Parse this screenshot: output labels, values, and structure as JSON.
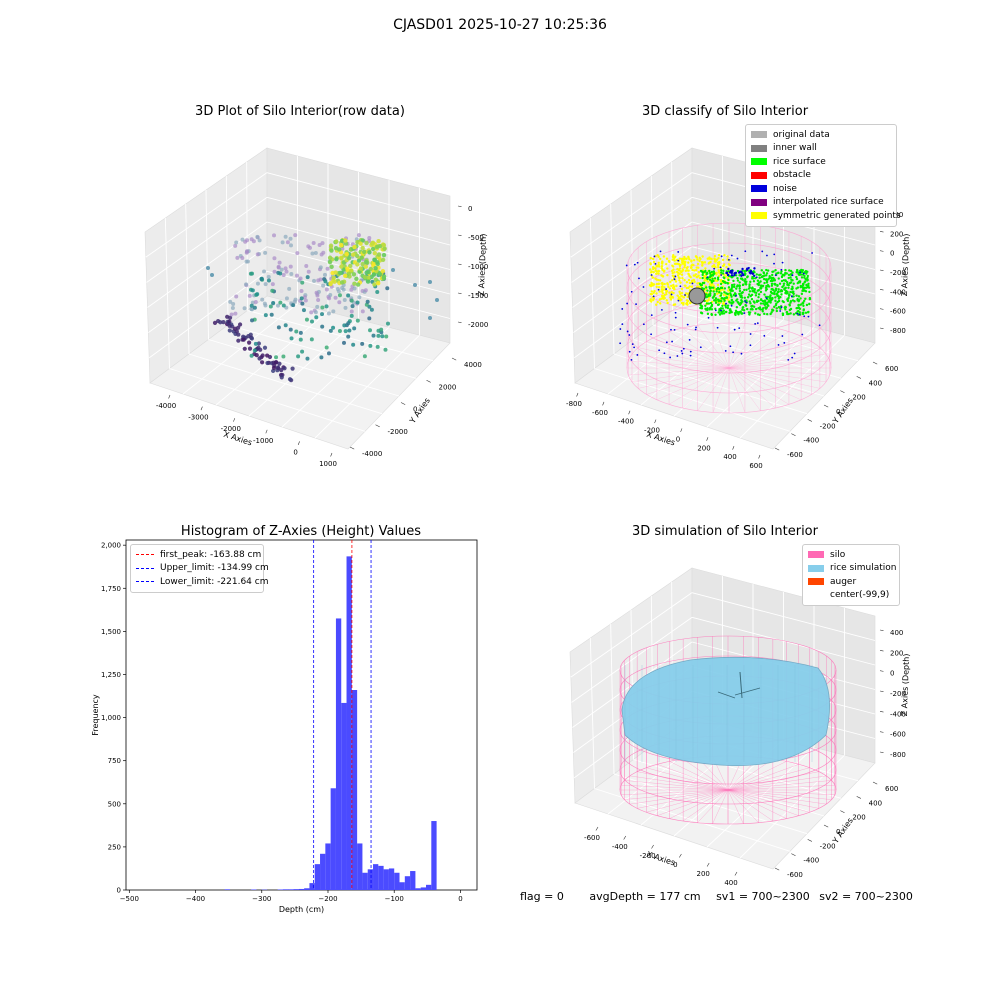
{
  "header": {
    "title": "CJASD01 2025-10-27 10:25:36"
  },
  "plot1": {
    "title": "3D Plot of Silo Interior(row data)",
    "xlabel": "X Axies",
    "ylabel": "Y Axies",
    "zlabel": "Z Axies (Depth)",
    "xticks": [
      "-4000",
      "-3000",
      "-2000",
      "-1000",
      "0",
      "1000"
    ],
    "yticks": [
      "-4000",
      "-2000",
      "0",
      "2000",
      "4000"
    ],
    "zticks": [
      "0",
      "-500",
      "-1000",
      "-1500",
      "-2000"
    ]
  },
  "plot2": {
    "title": "3D classify of Silo Interior",
    "xlabel": "X Axies",
    "ylabel": "Y Axies",
    "zlabel": "Z Axies (Depth)",
    "xticks": [
      "-800",
      "-600",
      "-400",
      "-200",
      "0",
      "200",
      "400",
      "600"
    ],
    "yticks": [
      "-600",
      "-400",
      "-200",
      "0",
      "200",
      "400",
      "600"
    ],
    "zticks": [
      "400",
      "200",
      "0",
      "-200",
      "-400",
      "-600",
      "-800"
    ],
    "legend": [
      {
        "label": "original data",
        "color": "#b0b0b0"
      },
      {
        "label": "inner wall",
        "color": "#808080"
      },
      {
        "label": "rice surface",
        "color": "#00ff00"
      },
      {
        "label": "obstacle",
        "color": "#ff0000"
      },
      {
        "label": "noise",
        "color": "#0000dd"
      },
      {
        "label": "interpolated rice surface",
        "color": "#800080"
      },
      {
        "label": "symmetric generated points",
        "color": "#ffff00"
      }
    ]
  },
  "plot3": {
    "title": "Histogram of Z-Axies (Height) Values",
    "legend": [
      {
        "label": "first_peak: -163.88 cm",
        "color": "#ff0000"
      },
      {
        "label": "Upper_limit: -134.99 cm",
        "color": "#0000ff"
      },
      {
        "label": "Lower_limit: -221.64 cm",
        "color": "#0000ff"
      }
    ]
  },
  "plot4": {
    "title": "3D simulation of Silo Interior",
    "xlabel": "X Axies",
    "ylabel": "Y Axies",
    "zlabel": "Z Axies (Depth)",
    "xticks": [
      "-600",
      "-400",
      "-200",
      "0",
      "200",
      "400"
    ],
    "yticks": [
      "-600",
      "-400",
      "-200",
      "0",
      "200",
      "400",
      "600"
    ],
    "zticks": [
      "400",
      "200",
      "0",
      "-200",
      "-400",
      "-600",
      "-800"
    ],
    "legend": [
      {
        "label": "silo",
        "color": "#ff69b4"
      },
      {
        "label": "rice simulation",
        "color": "#87ceeb"
      },
      {
        "label": "auger",
        "color": "#ff4500"
      },
      {
        "label": "center(-99,9)",
        "color": ""
      }
    ]
  },
  "footer": {
    "flag": "flag = 0",
    "avg": "avgDepth = 177 cm",
    "sv1": "sv1 = 700~2300",
    "sv2": "sv2 = 700~2300"
  },
  "chart_data": [
    {
      "type": "bar",
      "title": "Histogram of Z-Axies (Height) Values",
      "xlabel": "Depth (cm)",
      "ylabel": "Frequency",
      "xlim": [
        -505,
        25
      ],
      "ylim": [
        0,
        2030
      ],
      "xticks": [
        -500,
        -400,
        -300,
        -200,
        -100,
        0
      ],
      "yticks": [
        0,
        250,
        500,
        750,
        1000,
        1250,
        1500,
        1750,
        2000
      ],
      "bin_width": 8,
      "bins": [
        {
          "x": -356,
          "v": 4
        },
        {
          "x": -316,
          "v": 3
        },
        {
          "x": -300,
          "v": 2
        },
        {
          "x": -276,
          "v": 3
        },
        {
          "x": -268,
          "v": 4
        },
        {
          "x": -260,
          "v": 4
        },
        {
          "x": -252,
          "v": 5
        },
        {
          "x": -244,
          "v": 6
        },
        {
          "x": -236,
          "v": 10
        },
        {
          "x": -228,
          "v": 40
        },
        {
          "x": -220,
          "v": 150
        },
        {
          "x": -212,
          "v": 210
        },
        {
          "x": -204,
          "v": 270
        },
        {
          "x": -196,
          "v": 590
        },
        {
          "x": -188,
          "v": 1575
        },
        {
          "x": -180,
          "v": 1085
        },
        {
          "x": -172,
          "v": 1935
        },
        {
          "x": -164,
          "v": 1160
        },
        {
          "x": -156,
          "v": 270
        },
        {
          "x": -148,
          "v": 100
        },
        {
          "x": -140,
          "v": 120
        },
        {
          "x": -132,
          "v": 150
        },
        {
          "x": -124,
          "v": 140
        },
        {
          "x": -116,
          "v": 120
        },
        {
          "x": -108,
          "v": 125
        },
        {
          "x": -100,
          "v": 100
        },
        {
          "x": -92,
          "v": 45
        },
        {
          "x": -84,
          "v": 80
        },
        {
          "x": -76,
          "v": 110
        },
        {
          "x": -68,
          "v": 10
        },
        {
          "x": -60,
          "v": 15
        },
        {
          "x": -52,
          "v": 30
        },
        {
          "x": -44,
          "v": 400
        }
      ],
      "vlines": [
        {
          "name": "first_peak",
          "x": -163.88,
          "color": "#ff0000"
        },
        {
          "name": "Upper_limit",
          "x": -134.99,
          "color": "#0000ff"
        },
        {
          "name": "Lower_limit",
          "x": -221.64,
          "color": "#0000ff"
        }
      ],
      "bar_color": "#4b4bff",
      "legend_position": "top-left"
    }
  ]
}
